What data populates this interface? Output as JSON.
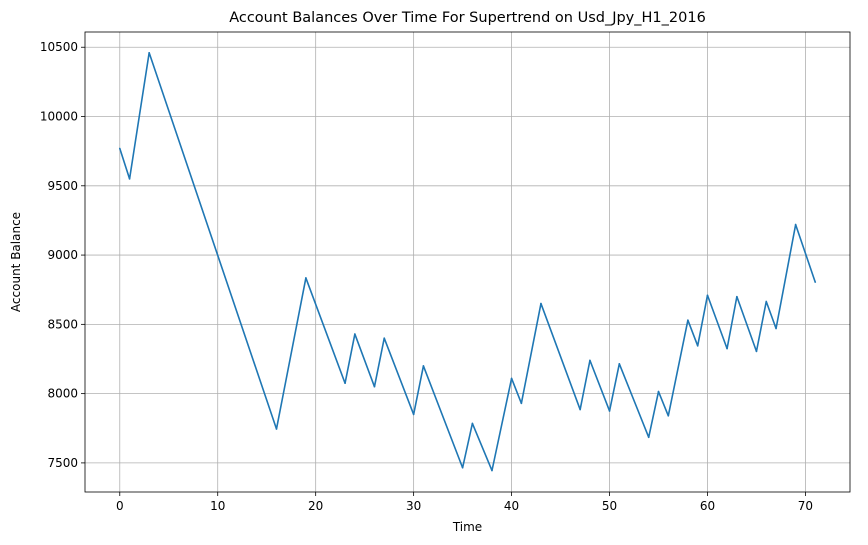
{
  "chart_data": {
    "type": "line",
    "title": "Account Balances Over Time For Supertrend on Usd_Jpy_H1_2016",
    "xlabel": "Time",
    "ylabel": "Account Balance",
    "xlim": [
      -3.55,
      74.55
    ],
    "ylim": [
      7290,
      10610
    ],
    "xticks": [
      0,
      10,
      20,
      30,
      40,
      50,
      60,
      70
    ],
    "yticks": [
      7500,
      8000,
      8500,
      9000,
      9500,
      10000,
      10500
    ],
    "grid": true,
    "line_color": "#1f77b4",
    "series": [
      {
        "name": "Account Balance",
        "points": [
          [
            0,
            9770
          ],
          [
            1,
            9550
          ],
          [
            3,
            10460
          ],
          [
            16,
            7745
          ],
          [
            19,
            8835
          ],
          [
            23,
            8075
          ],
          [
            24,
            8430
          ],
          [
            26,
            8050
          ],
          [
            27,
            8400
          ],
          [
            30,
            7850
          ],
          [
            31,
            8200
          ],
          [
            35,
            7465
          ],
          [
            36,
            7785
          ],
          [
            38,
            7445
          ],
          [
            40,
            8110
          ],
          [
            41,
            7930
          ],
          [
            43,
            8650
          ],
          [
            47,
            7885
          ],
          [
            48,
            8240
          ],
          [
            50,
            7875
          ],
          [
            51,
            8215
          ],
          [
            54,
            7685
          ],
          [
            55,
            8015
          ],
          [
            56,
            7840
          ],
          [
            58,
            8530
          ],
          [
            59,
            8345
          ],
          [
            60,
            8710
          ],
          [
            62,
            8325
          ],
          [
            63,
            8700
          ],
          [
            65,
            8305
          ],
          [
            66,
            8665
          ],
          [
            67,
            8470
          ],
          [
            69,
            9220
          ],
          [
            71,
            8805
          ]
        ]
      }
    ]
  }
}
